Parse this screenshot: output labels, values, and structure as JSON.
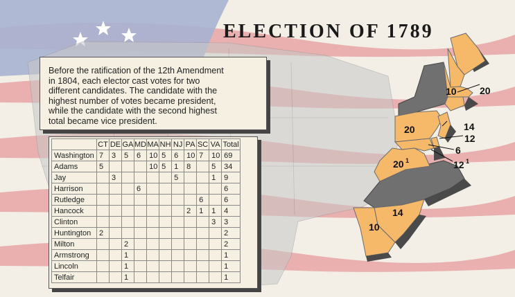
{
  "title": "ELECTION OF 1789",
  "note_lines": [
    "Before the ratification of the 12th Amendment",
    "in 1804, each elector cast votes for two",
    "different candidates.  The candidate with the",
    "highest number of votes became president,",
    "while the candidate with the second highest",
    "total became vice president."
  ],
  "table": {
    "columns": [
      "",
      "CT",
      "DE",
      "GA",
      "MD",
      "MA",
      "NH",
      "NJ",
      "PA",
      "SC",
      "VA",
      "Total"
    ],
    "rows": [
      [
        "Washington",
        "7",
        "3",
        "5",
        "6",
        "10",
        "5",
        "6",
        "10",
        "7",
        "10",
        "69"
      ],
      [
        "Adams",
        "5",
        "",
        "",
        "",
        "10",
        "5",
        "1",
        "8",
        "",
        "5",
        "34"
      ],
      [
        "Jay",
        "",
        "3",
        "",
        "",
        "",
        "",
        "5",
        "",
        "",
        "1",
        "9"
      ],
      [
        "Harrison",
        "",
        "",
        "",
        "6",
        "",
        "",
        "",
        "",
        "",
        "",
        "6"
      ],
      [
        "Rutledge",
        "",
        "",
        "",
        "",
        "",
        "",
        "",
        "",
        "6",
        "",
        "6"
      ],
      [
        "Hancock",
        "",
        "",
        "",
        "",
        "",
        "",
        "",
        "2",
        "1",
        "1",
        "4"
      ],
      [
        "Clinton",
        "",
        "",
        "",
        "",
        "",
        "",
        "",
        "",
        "",
        "3",
        "3"
      ],
      [
        "Huntington",
        "2",
        "",
        "",
        "",
        "",
        "",
        "",
        "",
        "",
        "",
        "2"
      ],
      [
        "Milton",
        "",
        "",
        "2",
        "",
        "",
        "",
        "",
        "",
        "",
        "",
        "2"
      ],
      [
        "Armstrong",
        "",
        "",
        "1",
        "",
        "",
        "",
        "",
        "",
        "",
        "",
        "1"
      ],
      [
        "Lincoln",
        "",
        "",
        "1",
        "",
        "",
        "",
        "",
        "",
        "",
        "",
        "1"
      ],
      [
        "Telfair",
        "",
        "",
        "1",
        "",
        "",
        "",
        "",
        "",
        "",
        "",
        "1"
      ]
    ]
  },
  "map": {
    "colors": {
      "voting_state": "#f6b969",
      "non_voting_state": "#707070",
      "flag_stripe": "#e8a6a6",
      "flag_canton": "#a7b2d2",
      "land": "#c8c8c8"
    },
    "labels": {
      "ma": "10",
      "nh": "20",
      "pa": "20",
      "va": "20",
      "va_sup": "1",
      "nj": "14",
      "de": "12",
      "md_sup": "1",
      "md": "6",
      "md2": "12",
      "sc": "14",
      "ga": "10"
    }
  }
}
